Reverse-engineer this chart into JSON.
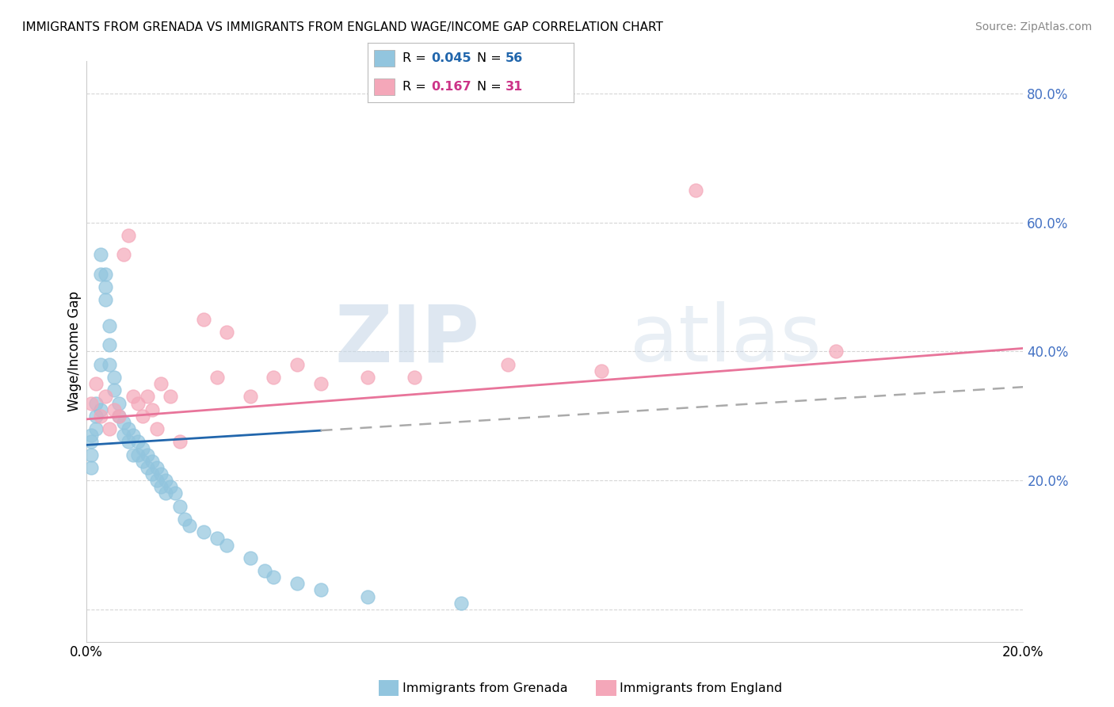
{
  "title": "IMMIGRANTS FROM GRENADA VS IMMIGRANTS FROM ENGLAND WAGE/INCOME GAP CORRELATION CHART",
  "source": "Source: ZipAtlas.com",
  "ylabel": "Wage/Income Gap",
  "watermark_zip": "ZIP",
  "watermark_atlas": "atlas",
  "xlim": [
    0.0,
    0.2
  ],
  "ylim": [
    -0.05,
    0.85
  ],
  "xtick_vals": [
    0.0,
    0.05,
    0.1,
    0.15,
    0.2
  ],
  "xticklabels": [
    "0.0%",
    "",
    "",
    "",
    "20.0%"
  ],
  "ytick_vals": [
    0.0,
    0.2,
    0.4,
    0.6,
    0.8
  ],
  "yticklabels": [
    "",
    "20.0%",
    "40.0%",
    "60.0%",
    "80.0%"
  ],
  "grenada_color": "#92c5de",
  "england_color": "#f4a7b9",
  "grenada_R": 0.045,
  "grenada_N": 56,
  "england_R": 0.167,
  "england_N": 31,
  "grenada_x": [
    0.001,
    0.001,
    0.001,
    0.001,
    0.002,
    0.002,
    0.002,
    0.003,
    0.003,
    0.003,
    0.003,
    0.004,
    0.004,
    0.004,
    0.005,
    0.005,
    0.005,
    0.006,
    0.006,
    0.007,
    0.007,
    0.008,
    0.008,
    0.009,
    0.009,
    0.01,
    0.01,
    0.011,
    0.011,
    0.012,
    0.012,
    0.013,
    0.013,
    0.014,
    0.014,
    0.015,
    0.015,
    0.016,
    0.016,
    0.017,
    0.017,
    0.018,
    0.019,
    0.02,
    0.021,
    0.022,
    0.025,
    0.028,
    0.03,
    0.035,
    0.038,
    0.04,
    0.045,
    0.05,
    0.06,
    0.08
  ],
  "grenada_y": [
    0.27,
    0.22,
    0.26,
    0.24,
    0.3,
    0.32,
    0.28,
    0.31,
    0.38,
    0.52,
    0.55,
    0.5,
    0.48,
    0.52,
    0.44,
    0.41,
    0.38,
    0.36,
    0.34,
    0.32,
    0.3,
    0.29,
    0.27,
    0.28,
    0.26,
    0.27,
    0.24,
    0.26,
    0.24,
    0.25,
    0.23,
    0.24,
    0.22,
    0.23,
    0.21,
    0.22,
    0.2,
    0.21,
    0.19,
    0.2,
    0.18,
    0.19,
    0.18,
    0.16,
    0.14,
    0.13,
    0.12,
    0.11,
    0.1,
    0.08,
    0.06,
    0.05,
    0.04,
    0.03,
    0.02,
    0.01
  ],
  "england_x": [
    0.001,
    0.002,
    0.003,
    0.004,
    0.005,
    0.006,
    0.007,
    0.008,
    0.009,
    0.01,
    0.011,
    0.012,
    0.013,
    0.014,
    0.015,
    0.016,
    0.018,
    0.02,
    0.025,
    0.028,
    0.03,
    0.035,
    0.04,
    0.045,
    0.05,
    0.06,
    0.07,
    0.09,
    0.11,
    0.13,
    0.16
  ],
  "england_y": [
    0.32,
    0.35,
    0.3,
    0.33,
    0.28,
    0.31,
    0.3,
    0.55,
    0.58,
    0.33,
    0.32,
    0.3,
    0.33,
    0.31,
    0.28,
    0.35,
    0.33,
    0.26,
    0.45,
    0.36,
    0.43,
    0.33,
    0.36,
    0.38,
    0.35,
    0.36,
    0.36,
    0.38,
    0.37,
    0.65,
    0.4
  ],
  "grenada_line_color": "#2166ac",
  "england_line_color": "#e8749a",
  "dashed_line_color": "#aaaaaa",
  "background_color": "#ffffff",
  "grid_color": "#cccccc",
  "ytick_color": "#4472c4",
  "title_fontsize": 11,
  "source_fontsize": 10,
  "tick_fontsize": 12,
  "ylabel_fontsize": 12
}
